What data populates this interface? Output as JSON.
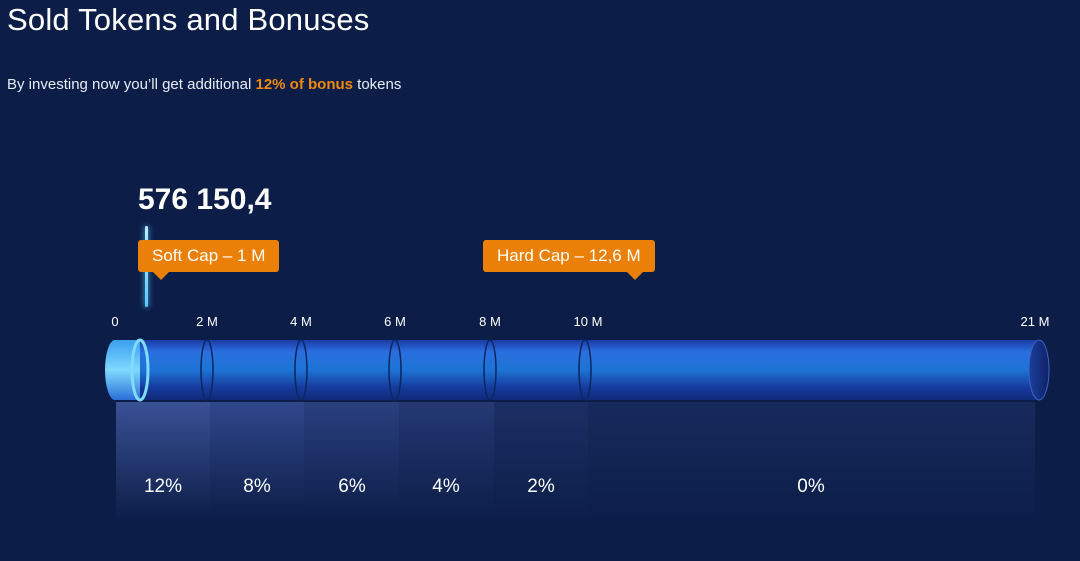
{
  "header": {
    "title": "Sold Tokens and Bonuses",
    "subtitle_prefix": "By investing now you’ll get additional ",
    "subtitle_accent": "12% of bonus",
    "subtitle_suffix": " tokens"
  },
  "progress": {
    "sold_amount_label": "576 150,4",
    "sold_value_millions": 0.5761504,
    "soft_cap_label": "Soft Cap – 1 M",
    "hard_cap_label": "Hard Cap – 12,6 M"
  },
  "ticks": [
    "0",
    "2 M",
    "4 M",
    "6 M",
    "8 M",
    "10 M",
    "21 M"
  ],
  "bonus_tiers": [
    "12%",
    "8%",
    "6%",
    "4%",
    "2%",
    "0%"
  ],
  "colors": {
    "background": "#0c1e48",
    "accent": "#ea8007",
    "bar": "#1f5fc8",
    "marker": "#58c8ff"
  }
}
